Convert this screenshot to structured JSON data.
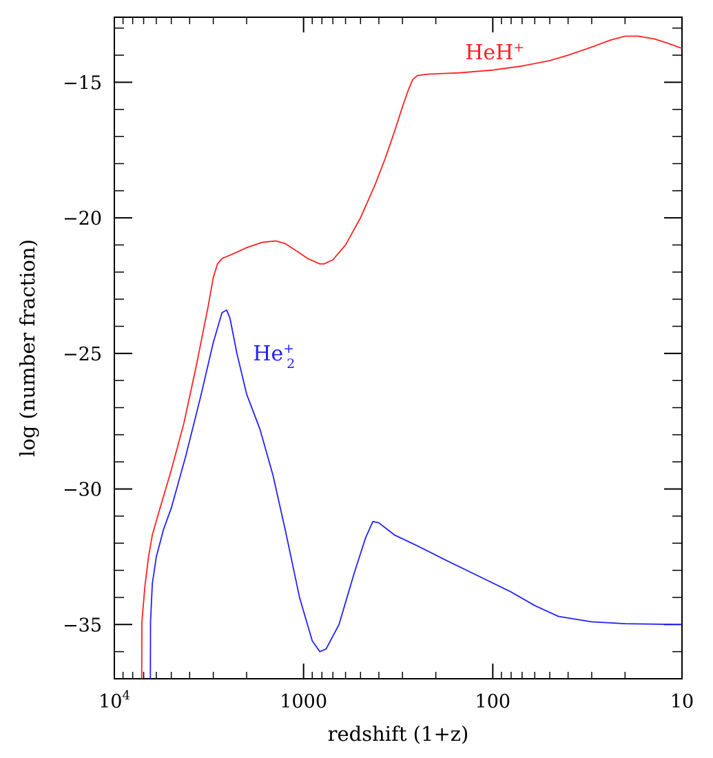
{
  "chart_data": {
    "type": "line",
    "xlabel": "redshift (1+z)",
    "ylabel": "log (number fraction)",
    "x_scale": "log",
    "x_reversed": true,
    "xlim": [
      10000,
      10
    ],
    "ylim": [
      -37,
      -12.6
    ],
    "x_ticks": [
      {
        "value": 10000,
        "label": "10",
        "sup": "4"
      },
      {
        "value": 1000,
        "label": "1000",
        "sup": ""
      },
      {
        "value": 100,
        "label": "100",
        "sup": ""
      },
      {
        "value": 10,
        "label": "10",
        "sup": ""
      }
    ],
    "y_ticks": [
      {
        "value": -15,
        "label": "−15"
      },
      {
        "value": -20,
        "label": "−20"
      },
      {
        "value": -25,
        "label": "−25"
      },
      {
        "value": -30,
        "label": "−30"
      },
      {
        "value": -35,
        "label": "−35"
      }
    ],
    "grid": false,
    "series": [
      {
        "name": "HeH",
        "label_sup": "+",
        "label_sub": "",
        "label_pos": [
          140,
          -13.9
        ],
        "color": "#ff2020",
        "points": [
          [
            7170,
            -37.0
          ],
          [
            7150,
            -34.9
          ],
          [
            6900,
            -33.6
          ],
          [
            6600,
            -32.5
          ],
          [
            6300,
            -31.7
          ],
          [
            5900,
            -31.0
          ],
          [
            5000,
            -29.3
          ],
          [
            4300,
            -27.6
          ],
          [
            3700,
            -25.5
          ],
          [
            3200,
            -23.3
          ],
          [
            3000,
            -22.2
          ],
          [
            2850,
            -21.7
          ],
          [
            2700,
            -21.5
          ],
          [
            2400,
            -21.35
          ],
          [
            2000,
            -21.1
          ],
          [
            1650,
            -20.9
          ],
          [
            1400,
            -20.85
          ],
          [
            1250,
            -20.95
          ],
          [
            1100,
            -21.2
          ],
          [
            950,
            -21.5
          ],
          [
            820,
            -21.7
          ],
          [
            780,
            -21.7
          ],
          [
            700,
            -21.55
          ],
          [
            600,
            -21.0
          ],
          [
            500,
            -20.0
          ],
          [
            420,
            -18.8
          ],
          [
            370,
            -17.8
          ],
          [
            330,
            -16.8
          ],
          [
            300,
            -15.9
          ],
          [
            280,
            -15.3
          ],
          [
            265,
            -14.9
          ],
          [
            250,
            -14.75
          ],
          [
            220,
            -14.7
          ],
          [
            150,
            -14.65
          ],
          [
            100,
            -14.55
          ],
          [
            70,
            -14.4
          ],
          [
            50,
            -14.2
          ],
          [
            40,
            -14.0
          ],
          [
            30,
            -13.7
          ],
          [
            24,
            -13.45
          ],
          [
            20,
            -13.3
          ],
          [
            17,
            -13.3
          ],
          [
            14,
            -13.4
          ],
          [
            12,
            -13.55
          ],
          [
            10,
            -13.75
          ]
        ]
      },
      {
        "name": "He",
        "label_sup": "+",
        "label_sub": "2",
        "label_pos": [
          1850,
          -25
        ],
        "color": "#2020ff",
        "points": [
          [
            6450,
            -37.0
          ],
          [
            6440,
            -34.9
          ],
          [
            6300,
            -33.5
          ],
          [
            6000,
            -32.5
          ],
          [
            5500,
            -31.5
          ],
          [
            5000,
            -30.7
          ],
          [
            4200,
            -28.8
          ],
          [
            3500,
            -26.6
          ],
          [
            3000,
            -24.6
          ],
          [
            2700,
            -23.5
          ],
          [
            2550,
            -23.4
          ],
          [
            2450,
            -23.7
          ],
          [
            2250,
            -25.0
          ],
          [
            2000,
            -26.5
          ],
          [
            1700,
            -27.8
          ],
          [
            1450,
            -29.5
          ],
          [
            1250,
            -31.5
          ],
          [
            1050,
            -34.0
          ],
          [
            900,
            -35.6
          ],
          [
            820,
            -36.0
          ],
          [
            760,
            -35.9
          ],
          [
            650,
            -35.0
          ],
          [
            540,
            -33.1
          ],
          [
            470,
            -31.8
          ],
          [
            430,
            -31.2
          ],
          [
            400,
            -31.25
          ],
          [
            330,
            -31.7
          ],
          [
            250,
            -32.1
          ],
          [
            180,
            -32.6
          ],
          [
            120,
            -33.2
          ],
          [
            80,
            -33.8
          ],
          [
            60,
            -34.3
          ],
          [
            45,
            -34.7
          ],
          [
            30,
            -34.9
          ],
          [
            20,
            -34.97
          ],
          [
            10,
            -35.0
          ]
        ]
      }
    ]
  }
}
